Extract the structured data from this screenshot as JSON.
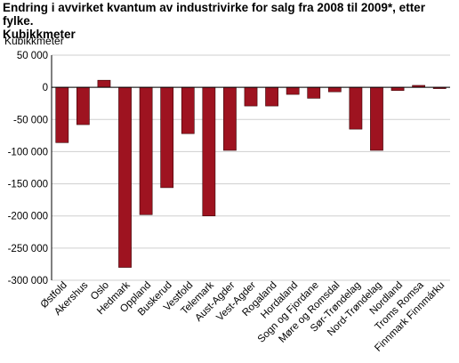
{
  "header": {
    "title_line1": "Endring i avvirket kvantum av industrivirke for salg fra 2008 til 2009*, etter fylke.",
    "title_line2": "Kubikkmeter"
  },
  "chart_data": {
    "type": "bar",
    "title": "Endring i avvirket kvantum av industrivirke for salg fra 2008 til 2009*, etter fylke. Kubikkmeter",
    "ylabel": "Kubikkmeter",
    "xlabel": "",
    "ylim": [
      -300000,
      50000
    ],
    "yticks": [
      50000,
      0,
      -50000,
      -100000,
      -150000,
      -200000,
      -250000,
      -300000
    ],
    "ytick_labels": [
      "50 000",
      "0",
      "-50 000",
      "-100 000",
      "-150 000",
      "-200 000",
      "-250 000",
      "-300 000"
    ],
    "grid": true,
    "bar_color": "#9e1320",
    "categories": [
      "Østfold",
      "Akershus",
      "Oslo",
      "Hedmark",
      "Oppland",
      "Buskerud",
      "Vestfold",
      "Telemark",
      "Aust-Agder",
      "Vest-Agder",
      "Rogaland",
      "Hordaland",
      "Sogn og Fjordane",
      "Møre og Romsdal",
      "Sør-Trøndelag",
      "Nord-Trøndelag",
      "Nordland",
      "Troms Romsa",
      "Finnmark Finnmárku"
    ],
    "values": [
      -86000,
      -58000,
      11000,
      -280000,
      -198000,
      -156000,
      -72000,
      -200000,
      -98000,
      -29000,
      -29000,
      -11000,
      -17000,
      -7000,
      -65000,
      -98000,
      -5000,
      3000,
      -2000
    ]
  }
}
